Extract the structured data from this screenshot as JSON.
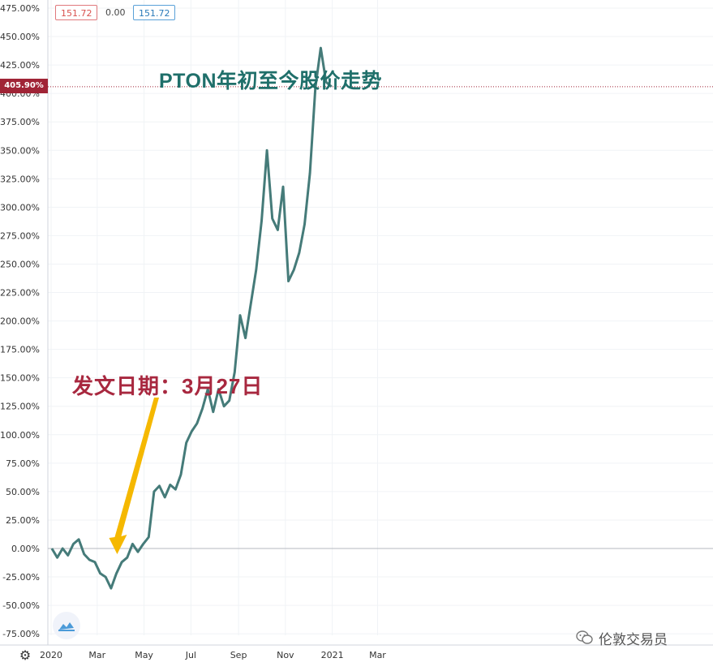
{
  "toolbar": {
    "open_value": "151.72",
    "change_value": "0.00",
    "close_value": "151.72"
  },
  "price_tag": "405.90%",
  "annotation": "发文日期：3月27日",
  "watermark": "伦敦交易员",
  "colors": {
    "line": "#457b79",
    "title": "#1f6f6a",
    "annotation": "#a8283f",
    "arrow": "#f5b800",
    "price_tag": "#a02436",
    "grid": "#f0f3f6"
  },
  "icons": {
    "settings": "gear-icon",
    "logo": "tradingview-cloud-icon",
    "watermark": "wechat-icon"
  },
  "chart_data": {
    "type": "line",
    "title": "PTON年初至今股价走势",
    "xlabel": "",
    "ylabel": "",
    "ylim": [
      -80,
      480
    ],
    "y_ticks": [
      "475.00%",
      "450.00%",
      "425.00%",
      "400.00%",
      "375.00%",
      "350.00%",
      "325.00%",
      "300.00%",
      "275.00%",
      "250.00%",
      "225.00%",
      "200.00%",
      "175.00%",
      "150.00%",
      "125.00%",
      "100.00%",
      "75.00%",
      "50.00%",
      "25.00%",
      "0.00%",
      "-25.00%",
      "-50.00%",
      "-75.00%"
    ],
    "x_ticks": [
      "2020",
      "Mar",
      "May",
      "Jul",
      "Sep",
      "Nov",
      "2021",
      "Mar"
    ],
    "grid": true,
    "current_value": 405.9,
    "series": [
      {
        "x": [
          "2020-01-02",
          "2020-01-09",
          "2020-01-16",
          "2020-01-23",
          "2020-01-30",
          "2020-02-06",
          "2020-02-13",
          "2020-02-20",
          "2020-02-27",
          "2020-03-05",
          "2020-03-12",
          "2020-03-19",
          "2020-03-26",
          "2020-04-02",
          "2020-04-09",
          "2020-04-16",
          "2020-04-23",
          "2020-04-30",
          "2020-05-07",
          "2020-05-14",
          "2020-05-21",
          "2020-05-28",
          "2020-06-04",
          "2020-06-11",
          "2020-06-18",
          "2020-06-25",
          "2020-07-02",
          "2020-07-09",
          "2020-07-16",
          "2020-07-23",
          "2020-07-30",
          "2020-08-06",
          "2020-08-13",
          "2020-08-20",
          "2020-08-27",
          "2020-09-03",
          "2020-09-10",
          "2020-09-17",
          "2020-09-24",
          "2020-10-01",
          "2020-10-08",
          "2020-10-15",
          "2020-10-22",
          "2020-10-29",
          "2020-11-05",
          "2020-11-12",
          "2020-11-19",
          "2020-11-26",
          "2020-12-03",
          "2020-12-10",
          "2020-12-17",
          "2020-12-24",
          "2020-12-31"
        ],
        "values": [
          0,
          -8,
          0,
          -6,
          4,
          8,
          -5,
          -10,
          -12,
          -22,
          -25,
          -35,
          -22,
          -12,
          -8,
          4,
          -3,
          4,
          10,
          50,
          55,
          45,
          56,
          52,
          65,
          93,
          103,
          110,
          123,
          140,
          120,
          140,
          125,
          130,
          155,
          205,
          185,
          215,
          245,
          288,
          350,
          290,
          280,
          318,
          235,
          245,
          260,
          285,
          330,
          405,
          440,
          410,
          405.9
        ]
      }
    ]
  }
}
